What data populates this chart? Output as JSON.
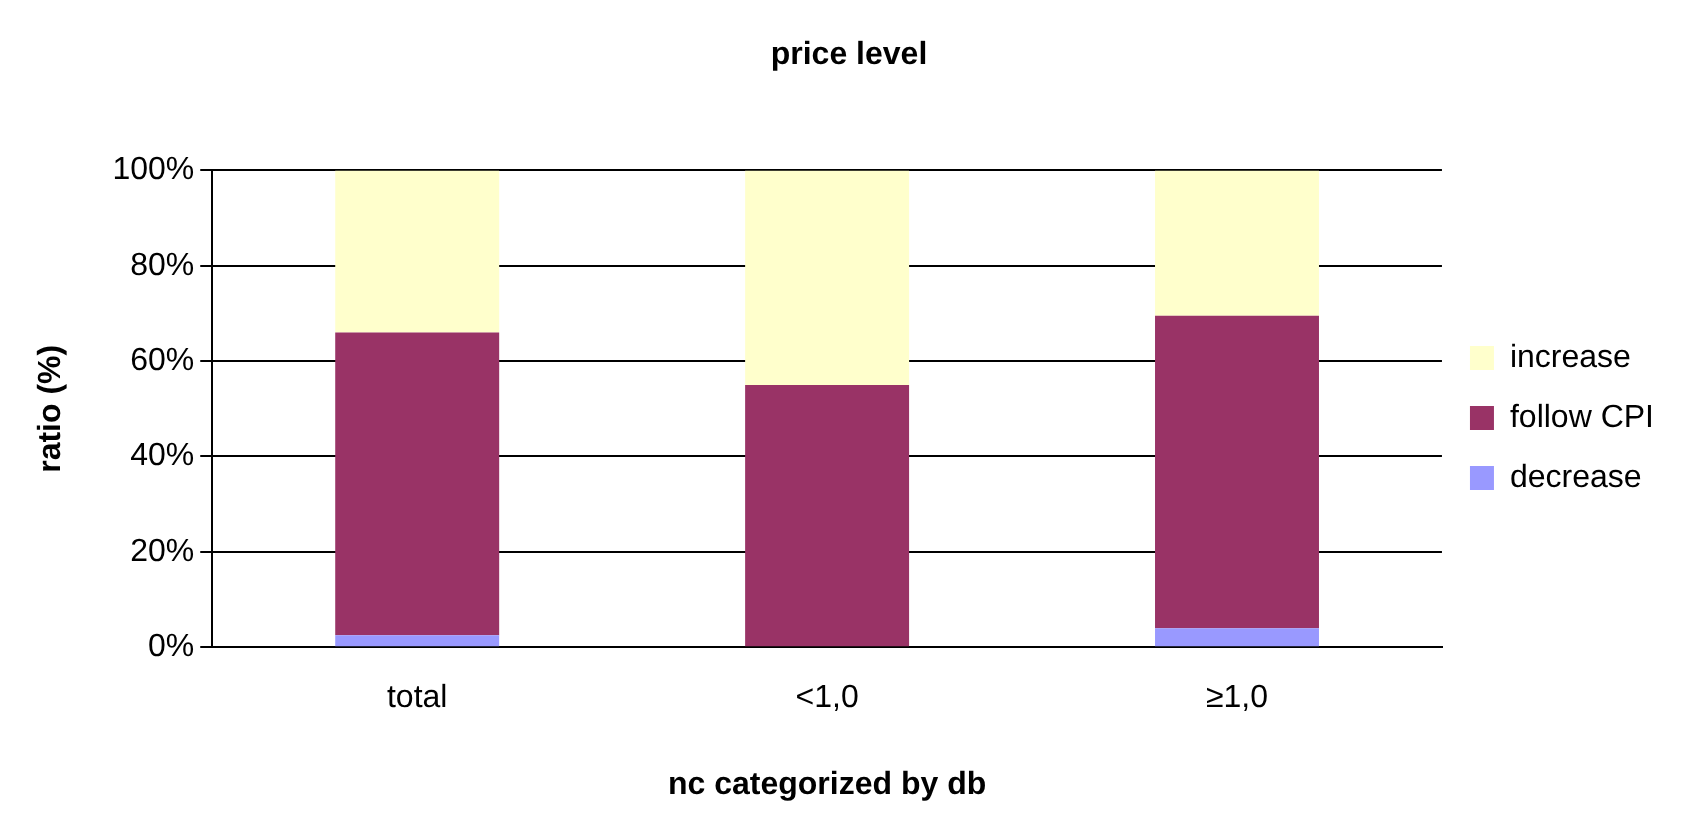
{
  "chart_data": {
    "type": "bar",
    "title": "price level",
    "xlabel": "nc categorized by db",
    "ylabel": "ratio (%)",
    "categories": [
      "total",
      "<1,0",
      "≥1,0"
    ],
    "stacked": true,
    "series": [
      {
        "name": "decrease",
        "color": "#9999ff",
        "values": [
          2.5,
          0,
          4
        ]
      },
      {
        "name": "follow CPI",
        "color": "#993366",
        "values": [
          63.5,
          55,
          65.5
        ]
      },
      {
        "name": "increase",
        "color": "#ffffcc",
        "values": [
          34,
          45,
          30.5
        ]
      }
    ],
    "ylim": [
      0,
      100
    ],
    "yticks": [
      {
        "value": 0,
        "label": "0%"
      },
      {
        "value": 20,
        "label": "20%"
      },
      {
        "value": 40,
        "label": "40%"
      },
      {
        "value": 60,
        "label": "60%"
      },
      {
        "value": 80,
        "label": "80%"
      },
      {
        "value": 100,
        "label": "100%"
      }
    ],
    "grid": "y",
    "legend": "right"
  }
}
